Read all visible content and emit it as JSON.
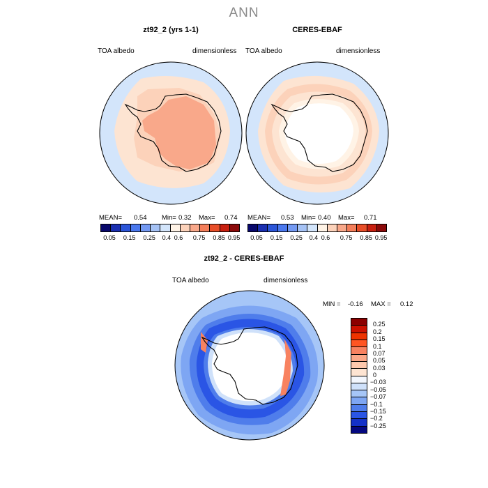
{
  "title": "ANN",
  "panels": [
    {
      "title": "zt92_2 (yrs 1-1)",
      "var_label": "TOA albedo",
      "units_label": "dimensionless",
      "stats": {
        "mean_label": "MEAN=",
        "mean": "0.54",
        "min_label": "Min=",
        "min": "0.32",
        "max_label": "Max=",
        "max": "0.74"
      }
    },
    {
      "title": "CERES-EBAF",
      "var_label": "TOA albedo",
      "units_label": "dimensionless",
      "stats": {
        "mean_label": "MEAN=",
        "mean": "0.53",
        "min_label": "Min=",
        "min": "0.40",
        "max_label": "Max=",
        "max": "0.71"
      }
    }
  ],
  "colorbar_top": {
    "colors": [
      "#08086b",
      "#1a2fb0",
      "#2b55d8",
      "#4a78ee",
      "#7399f2",
      "#a5c2f5",
      "#d3e5fb",
      "#fff3e6",
      "#fcd2ba",
      "#f9a88a",
      "#f47e5a",
      "#e84e28",
      "#c82010",
      "#8b0a0a"
    ],
    "labels": [
      "0.05",
      "0.15",
      "0.25",
      "0.4",
      "0.6",
      "0.75",
      "0.85",
      "0.95"
    ]
  },
  "diff_panel": {
    "title": "zt92_2 - CERES-EBAF",
    "var_label": "TOA albedo",
    "units_label": "dimensionless",
    "stats": {
      "min_label": "MIN =",
      "min": "-0.16",
      "max_label": "MAX =",
      "max": "0.12"
    }
  },
  "colorbar_diff": {
    "colors": [
      "#8b0000",
      "#cc1100",
      "#ee3300",
      "#ff5522",
      "#f88260",
      "#fba888",
      "#fdc8ad",
      "#fde4d2",
      "#f2f6fd",
      "#cfe1fa",
      "#a6c6f7",
      "#7ea6f3",
      "#4f7deb",
      "#2a55e5",
      "#1331c8",
      "#040880"
    ],
    "labels": [
      "0.25",
      "0.2",
      "0.15",
      "0.1",
      "0.07",
      "0.05",
      "0.03",
      "0",
      "−0.03",
      "−0.05",
      "−0.07",
      "−0.1",
      "−0.15",
      "−0.2",
      "−0.25"
    ]
  }
}
